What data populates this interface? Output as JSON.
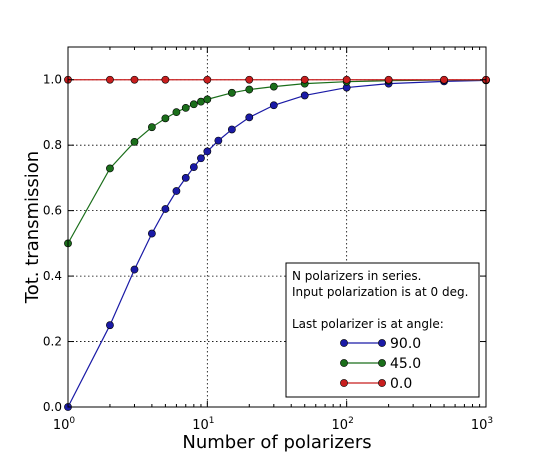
{
  "chart_data": {
    "type": "line",
    "title": "",
    "xlabel": "Number of polarizers",
    "ylabel": "Tot. transmission",
    "xscale": "log",
    "xlim": [
      1,
      1000
    ],
    "ylim": [
      0,
      1.1
    ],
    "grid": true,
    "legend_placement": "lower-right",
    "x_ticks": [
      {
        "value": 1,
        "base": "10",
        "exp": "0"
      },
      {
        "value": 10,
        "base": "10",
        "exp": "1"
      },
      {
        "value": 100,
        "base": "10",
        "exp": "2"
      },
      {
        "value": 1000,
        "base": "10",
        "exp": "3"
      }
    ],
    "y_ticks": [
      "0.0",
      "0.2",
      "0.4",
      "0.6",
      "0.8",
      "1.0"
    ],
    "legend": {
      "header_lines": [
        "N polarizers in series.",
        "Input polarization is at 0 deg.",
        "",
        "Last polarizer is at angle:"
      ]
    },
    "series": [
      {
        "name": "90.0",
        "color": "#1a1aa6",
        "angle_deg": 90,
        "x": [
          1,
          2,
          3,
          4,
          5,
          6,
          7,
          8,
          9,
          10,
          12,
          15,
          20,
          30,
          50,
          100,
          200,
          500,
          1000
        ],
        "y": [
          0,
          0.25,
          0.42,
          0.53,
          0.605,
          0.66,
          0.7,
          0.733,
          0.76,
          0.781,
          0.814,
          0.848,
          0.885,
          0.922,
          0.952,
          0.976,
          0.988,
          0.995,
          0.998
        ]
      },
      {
        "name": "45.0",
        "color": "#1a6e1a",
        "angle_deg": 45,
        "x": [
          1,
          2,
          3,
          4,
          5,
          6,
          7,
          8,
          9,
          10,
          15,
          20,
          30,
          50,
          100,
          200,
          500,
          1000
        ],
        "y": [
          0.5,
          0.729,
          0.81,
          0.855,
          0.882,
          0.901,
          0.914,
          0.925,
          0.933,
          0.94,
          0.96,
          0.97,
          0.979,
          0.988,
          0.994,
          0.997,
          0.999,
          0.999
        ]
      },
      {
        "name": "0.0",
        "color": "#c81e1e",
        "angle_deg": 0,
        "x": [
          1,
          2,
          3,
          5,
          10,
          20,
          50,
          100,
          200,
          500,
          1000
        ],
        "y": [
          1,
          1,
          1,
          1,
          1,
          1,
          1,
          1,
          1,
          1,
          1
        ]
      }
    ]
  }
}
